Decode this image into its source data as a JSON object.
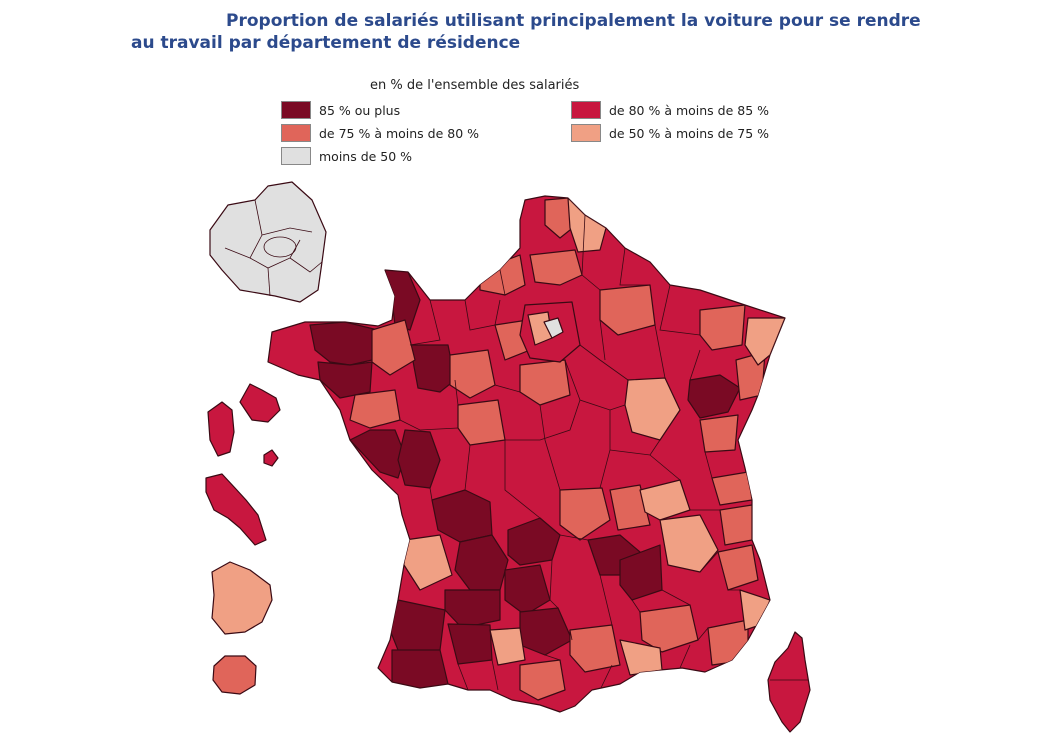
{
  "title": {
    "line1": "Proportion de salariés utilisant principalement la voiture pour se rendre",
    "line2": "au travail par département de résidence"
  },
  "legend": {
    "subtitle": "en % de l'ensemble des salariés",
    "items": [
      {
        "label": "85 % ou plus",
        "color": "#7a0a24"
      },
      {
        "label": "de 80 % à moins de 85 %",
        "color": "#c8173f"
      },
      {
        "label": "de 75 % à moins de 80 %",
        "color": "#e0655a"
      },
      {
        "label": "de 50 % à moins de 75 %",
        "color": "#f0a084"
      },
      {
        "label": "moins de 50 %",
        "color": "#e0e0e0"
      }
    ]
  }
}
